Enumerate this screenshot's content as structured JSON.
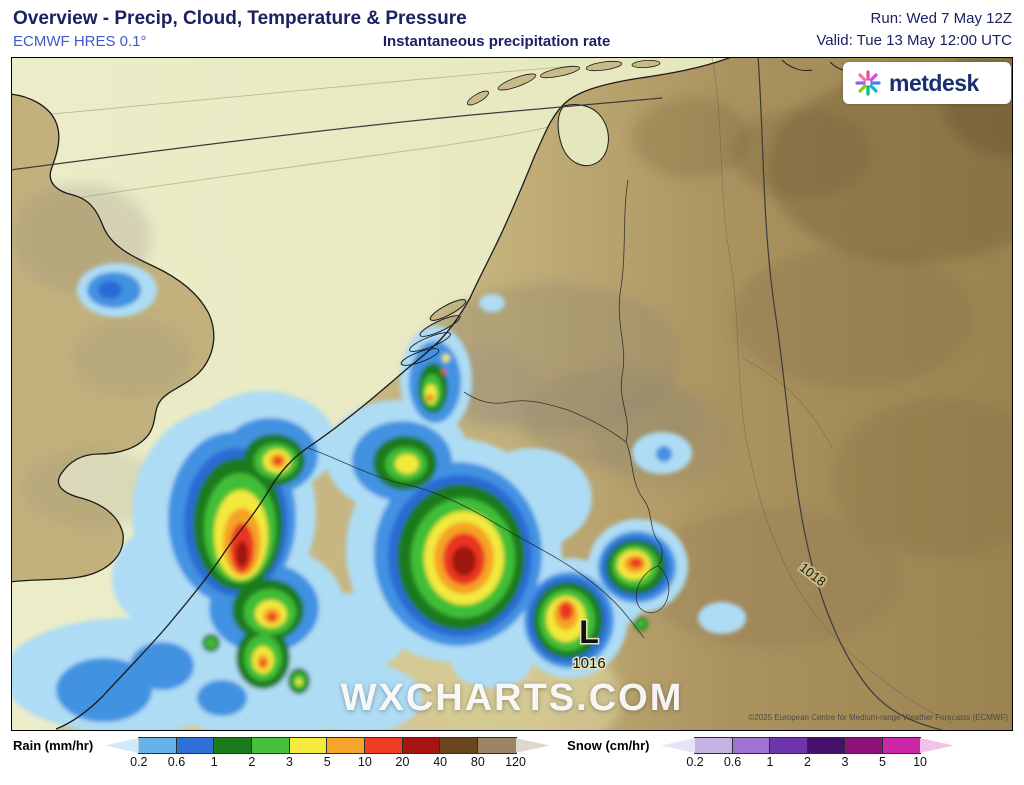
{
  "header": {
    "title": "Overview - Precip, Cloud, Temperature & Pressure",
    "model": "ECMWF HRES 0.1°",
    "subtitle": "Instantaneous precipitation rate",
    "run_label": "Run: Wed 7 May 12Z",
    "valid_label": "Valid: Tue 13 May 12:00 UTC"
  },
  "map": {
    "watermark": "WXCHARTS.COM",
    "attribution": "©2025 European Centre for Medium-range Weather Forecasts (ECMWF)",
    "logo_text": "metdesk",
    "pressure": {
      "low_symbol": "L",
      "low_value": "1016",
      "isobar_label": "1018"
    }
  },
  "legend": {
    "rain": {
      "label": "Rain (mm/hr)",
      "ticks": [
        "0.2",
        "0.6",
        "1",
        "2",
        "3",
        "5",
        "10",
        "20",
        "40",
        "80",
        "120"
      ],
      "colors": [
        "#cfeaf7",
        "#66b3e8",
        "#2f6fd8",
        "#1d7a1d",
        "#45c13b",
        "#f4ea3d",
        "#f5a52b",
        "#ee3d23",
        "#a81410",
        "#6b4520",
        "#9b8464",
        "#ded7cb"
      ]
    },
    "snow": {
      "label": "Snow (cm/hr)",
      "ticks": [
        "0.2",
        "0.6",
        "1",
        "2",
        "3",
        "5",
        "10"
      ],
      "colors": [
        "#e9e2f4",
        "#c7b2e6",
        "#9d74d0",
        "#6f35ae",
        "#451069",
        "#8c1277",
        "#cb28a8",
        "#f3c2ea"
      ]
    }
  }
}
